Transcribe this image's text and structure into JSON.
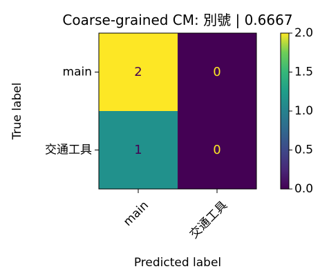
{
  "chart_data": {
    "type": "heatmap",
    "title": "Coarse-grained CM: 別號 | 0.6667",
    "xlabel": "Predicted label",
    "ylabel": "True label",
    "x_categories": [
      "main",
      "交通工具"
    ],
    "y_categories": [
      "main",
      "交通工具"
    ],
    "values": [
      [
        2,
        0
      ],
      [
        1,
        0
      ]
    ],
    "cell_labels": [
      [
        "2",
        "0"
      ],
      [
        "1",
        "0"
      ]
    ],
    "colormap": "viridis",
    "colorbar": {
      "range": [
        0.0,
        2.0
      ],
      "ticks": [
        0.0,
        0.5,
        1.0,
        1.5,
        2.0
      ],
      "tick_labels": [
        "0.0",
        "0.5",
        "1.0",
        "1.5",
        "2.0"
      ]
    },
    "colors": {
      "low": "#440154",
      "mid": "#21918c",
      "high": "#fde725",
      "text_on_dark": "#fde725",
      "text_on_light": "#440154"
    }
  }
}
